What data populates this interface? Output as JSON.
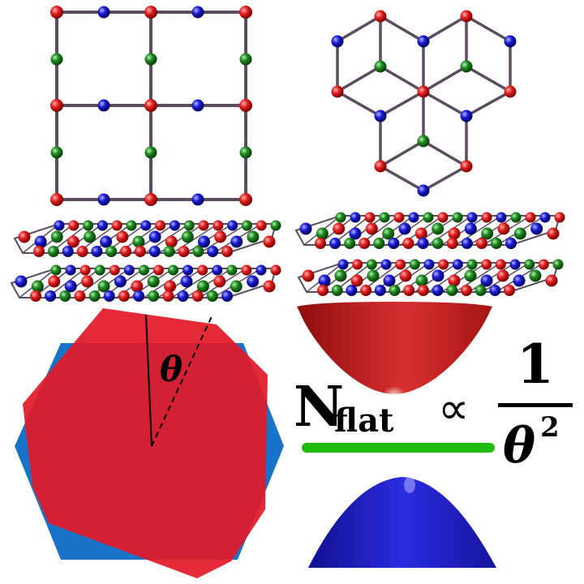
{
  "angle_symbol": "θ",
  "formula": {
    "N": "N",
    "subscript": "flat",
    "proportional": "∝",
    "numerator": "1",
    "denominator_symbol": "θ",
    "denominator_exponent": "2"
  },
  "colors": {
    "atom_red": "#e52020",
    "atom_blue": "#1c1cd8",
    "atom_green": "#1e8a1e",
    "bond": "#5a4e5e",
    "hexagon_blue": "#1874c8",
    "rotated_red": "#e21a28",
    "upper_band": "#c42424",
    "flat_band": "#22bb11",
    "lower_band": "#2222cc"
  }
}
